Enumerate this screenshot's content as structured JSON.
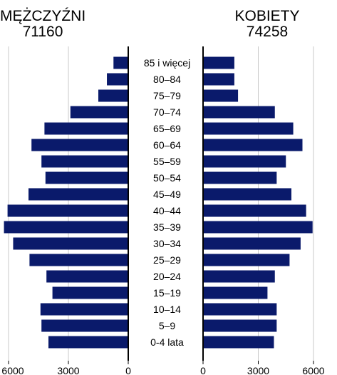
{
  "header": {
    "men_label": "MĘŻCZYŹNI",
    "men_total": "71160",
    "women_label": "KOBIETY",
    "women_total": "74258"
  },
  "chart_data": {
    "type": "bar",
    "orientation": "horizontal-population-pyramid",
    "categories": [
      "85 i więcej",
      "80–84",
      "75–79",
      "70–74",
      "65–69",
      "60–64",
      "55–59",
      "50–54",
      "45–49",
      "40–44",
      "35–39",
      "30–34",
      "25–29",
      "20–24",
      "15–19",
      "10–14",
      "5–9",
      "0-4 lata"
    ],
    "series": [
      {
        "name": "MĘŻCZYŹNI",
        "values": [
          740,
          1070,
          1500,
          2900,
          4200,
          4850,
          4350,
          4150,
          5000,
          6050,
          6230,
          5770,
          4950,
          4100,
          3800,
          4400,
          4350,
          4000
        ]
      },
      {
        "name": "KOBIETY",
        "values": [
          1700,
          1700,
          1900,
          3900,
          4900,
          5400,
          4500,
          4000,
          4800,
          5600,
          5950,
          5300,
          4700,
          3900,
          3500,
          4000,
          4000,
          3850
        ]
      }
    ],
    "xlim": [
      0,
      6000
    ],
    "xticks": [
      "6000",
      "3000",
      "0"
    ],
    "grid": true,
    "colors": {
      "bar": "#0a1a6b",
      "grid": "#c8c8c8",
      "axis": "#000000"
    }
  }
}
